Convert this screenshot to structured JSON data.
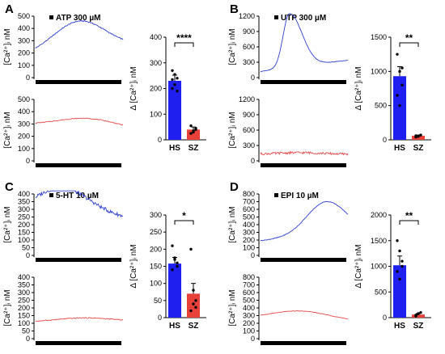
{
  "panels": [
    {
      "label": "A",
      "legend": "ATP 300 µM",
      "trace_top": {
        "ylim": [
          0,
          500
        ],
        "ticks": [
          "0",
          "100",
          "200",
          "300",
          "400",
          "500"
        ],
        "ylabel": "[Ca²⁺]ᵢ nM",
        "start": 180,
        "peak": 460,
        "end": 250,
        "peak_frac": 0.5,
        "width_frac": 0.3,
        "shape": "bell"
      },
      "trace_bottom": {
        "ylim": [
          0,
          500
        ],
        "ticks": [
          "0",
          "100",
          "200",
          "300",
          "400",
          "500"
        ],
        "ylabel": "[Ca²⁺]ᵢ nM",
        "start": 290,
        "peak": 345,
        "end": 250,
        "peak_frac": 0.6,
        "width_frac": 0.35,
        "shape": "bell"
      },
      "bar": {
        "ylim": [
          0,
          400
        ],
        "ticks": [
          "0",
          "100",
          "200",
          "300",
          "400"
        ],
        "ylabel": "Δ [Ca²⁺]ᵢ nM",
        "categories": [
          "HS",
          "SZ"
        ],
        "values": [
          230,
          40
        ],
        "errors": [
          22,
          10
        ],
        "points": [
          [
            200,
            215,
            240,
            270,
            255,
            190,
            235
          ],
          [
            25,
            35,
            45,
            55,
            30,
            40
          ]
        ],
        "sig": "****"
      }
    },
    {
      "label": "B",
      "legend": "UTP 300 µM",
      "trace_top": {
        "ylim": [
          0,
          1200
        ],
        "ticks": [
          "0",
          "300",
          "600",
          "900",
          "1200"
        ],
        "ylabel": "[Ca²⁺]ᵢ nM",
        "start": 120,
        "peak": 1250,
        "end": 340,
        "peak_frac": 0.33,
        "width_frac": 0.12,
        "shape": "spike"
      },
      "trace_bottom": {
        "ylim": [
          0,
          1200
        ],
        "ticks": [
          "0",
          "300",
          "600",
          "900",
          "1200"
        ],
        "ylabel": "[Ca²⁺]ᵢ nM",
        "start": 130,
        "peak": 160,
        "end": 130,
        "peak_frac": 0.45,
        "width_frac": 0.25,
        "shape": "bell"
      },
      "bar": {
        "ylim": [
          0,
          1500
        ],
        "ticks": [
          "0",
          "500",
          "1000",
          "1500"
        ],
        "ylabel": "Δ [Ca²⁺]ᵢ nM",
        "categories": [
          "HS",
          "SZ"
        ],
        "values": [
          930,
          60
        ],
        "errors": [
          140,
          10
        ],
        "points": [
          [
            1250,
            1000,
            800,
            650,
            500,
            1050
          ],
          [
            40,
            50,
            70,
            60,
            55
          ]
        ],
        "sig": "**"
      }
    },
    {
      "label": "C",
      "legend": "5-HT 10 µM",
      "trace_top": {
        "ylim": [
          0,
          400
        ],
        "ticks": [
          "0",
          "50",
          "100",
          "150",
          "200",
          "250",
          "300",
          "350",
          "400"
        ],
        "ylabel": "[Ca²⁺]ᵢ nM",
        "start": 260,
        "peak": 440,
        "end": 240,
        "peak_frac": 0.3,
        "width_frac": 0.32,
        "shape": "bell"
      },
      "trace_bottom": {
        "ylim": [
          0,
          400
        ],
        "ticks": [
          "0",
          "50",
          "100",
          "150",
          "200",
          "250",
          "300",
          "350",
          "400"
        ],
        "ylabel": "[Ca²⁺]ᵢ nM",
        "start": 110,
        "peak": 135,
        "end": 115,
        "peak_frac": 0.55,
        "width_frac": 0.3,
        "shape": "bell"
      },
      "bar": {
        "ylim": [
          0,
          300
        ],
        "ticks": [
          "0",
          "50",
          "100",
          "150",
          "200",
          "250",
          "300"
        ],
        "ylabel": "Δ [Ca²⁺]ᵢ nM",
        "categories": [
          "HS",
          "SZ"
        ],
        "values": [
          158,
          70
        ],
        "errors": [
          18,
          30
        ],
        "points": [
          [
            210,
            175,
            160,
            140,
            170,
            150
          ],
          [
            200,
            80,
            50,
            20,
            40,
            30
          ]
        ],
        "sig": "*"
      }
    },
    {
      "label": "D",
      "legend": "EPI 10 µM",
      "trace_top": {
        "ylim": [
          0,
          800
        ],
        "ticks": [
          "0",
          "100",
          "200",
          "300",
          "400",
          "500",
          "600",
          "700",
          "800"
        ],
        "ylabel": "[Ca²⁺]ᵢ nM",
        "start": 190,
        "peak": 700,
        "end": 320,
        "peak_frac": 0.75,
        "width_frac": 0.22,
        "shape": "bell"
      },
      "trace_bottom": {
        "ylim": [
          0,
          800
        ],
        "ticks": [
          "0",
          "100",
          "200",
          "300",
          "400",
          "500",
          "600",
          "700",
          "800"
        ],
        "ylabel": "[Ca²⁺]ᵢ nM",
        "start": 250,
        "peak": 360,
        "end": 220,
        "peak_frac": 0.45,
        "width_frac": 0.35,
        "shape": "bell"
      },
      "bar": {
        "ylim": [
          0,
          2000
        ],
        "ticks": [
          "0",
          "500",
          "1000",
          "1500",
          "2000"
        ],
        "ylabel": "Δ [Ca²⁺]ᵢ nM",
        "categories": [
          "HS",
          "SZ"
        ],
        "values": [
          1020,
          60
        ],
        "errors": [
          180,
          20
        ],
        "points": [
          [
            1500,
            1300,
            1100,
            900,
            750,
            1000
          ],
          [
            30,
            70,
            100,
            50,
            80
          ]
        ],
        "sig": "**"
      }
    }
  ],
  "colors": {
    "hs": "#1f1ff0",
    "sz": "#e8413a",
    "trace_top": "#2d3fd0",
    "trace_bottom": "#e84a4a"
  }
}
